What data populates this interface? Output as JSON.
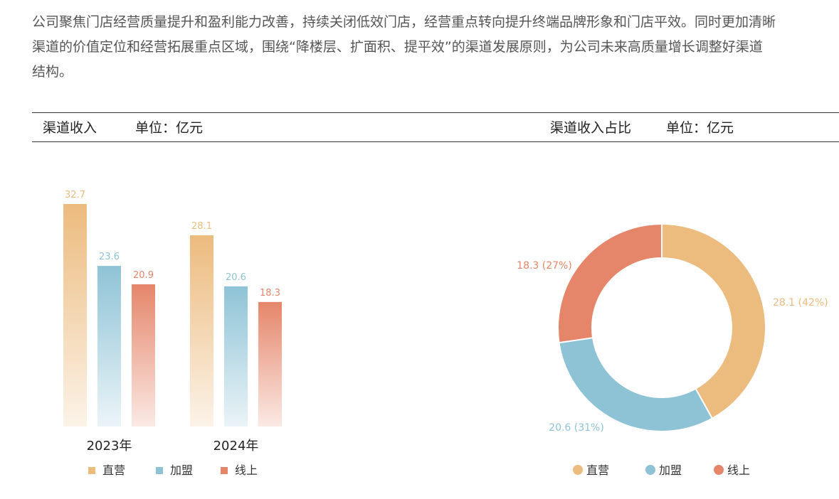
{
  "paragraph": {
    "lines": [
      "公司聚焦门店经营质量提升和盈利能力改善，持续关闭低效门店，经营重点转向提升终端品牌形象和门店平效。同时更加清晰",
      "渠道的价值定位和经营拓展重点区域，围绕“降楼层、扩面积、提平效”的渠道发展原则，为公司未来高质量增长调整好渠道",
      "结构。"
    ]
  },
  "table_header": {
    "left_title": "渠道收入",
    "left_unit": "单位：亿元",
    "right_title": "渠道收入占比",
    "right_unit": "单位：亿元"
  },
  "colors": {
    "direct": "#ecbb7e",
    "franchise": "#8ec3d6",
    "online": "#e5866a"
  },
  "chart_data": [
    {
      "type": "bar",
      "title": "渠道收入",
      "unit": "亿元",
      "categories": [
        "2023年",
        "2024年"
      ],
      "series": [
        {
          "name": "直营",
          "values": [
            32.7,
            28.1
          ],
          "color": "#ecbb7e"
        },
        {
          "name": "加盟",
          "values": [
            23.6,
            20.6
          ],
          "color": "#8ec3d6"
        },
        {
          "name": "线上",
          "values": [
            20.9,
            18.3
          ],
          "color": "#e5866a"
        }
      ],
      "ylim": [
        0,
        33.5
      ],
      "grid": false,
      "legend": "bottom"
    },
    {
      "type": "pie",
      "title": "渠道收入占比",
      "unit": "亿元",
      "donut": true,
      "slices": [
        {
          "name": "直营",
          "value": 28.1,
          "label": "28.1 (42%)",
          "color": "#ecbb7e"
        },
        {
          "name": "加盟",
          "value": 20.6,
          "label": "20.6 (31%)",
          "color": "#8ec3d6"
        },
        {
          "name": "线上",
          "value": 18.3,
          "label": "18.3 (27%)",
          "color": "#e5866a"
        }
      ],
      "legend": "bottom"
    }
  ]
}
